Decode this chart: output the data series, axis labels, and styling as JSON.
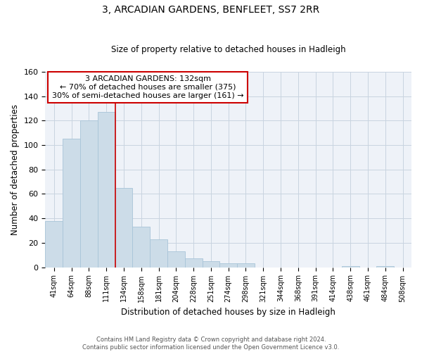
{
  "title": "3, ARCADIAN GARDENS, BENFLEET, SS7 2RR",
  "subtitle": "Size of property relative to detached houses in Hadleigh",
  "xlabel": "Distribution of detached houses by size in Hadleigh",
  "ylabel": "Number of detached properties",
  "bin_labels": [
    "41sqm",
    "64sqm",
    "88sqm",
    "111sqm",
    "134sqm",
    "158sqm",
    "181sqm",
    "204sqm",
    "228sqm",
    "251sqm",
    "274sqm",
    "298sqm",
    "321sqm",
    "344sqm",
    "368sqm",
    "391sqm",
    "414sqm",
    "438sqm",
    "461sqm",
    "484sqm",
    "508sqm"
  ],
  "bar_heights": [
    38,
    105,
    120,
    127,
    65,
    33,
    23,
    13,
    7,
    5,
    3,
    3,
    0,
    0,
    0,
    0,
    0,
    1,
    0,
    1,
    0
  ],
  "bar_color": "#ccdce8",
  "bar_edgecolor": "#a8c4d8",
  "vline_x": 3.5,
  "vline_color": "#cc0000",
  "ylim": [
    0,
    160
  ],
  "yticks": [
    0,
    20,
    40,
    60,
    80,
    100,
    120,
    140,
    160
  ],
  "annotation_text": "3 ARCADIAN GARDENS: 132sqm\n← 70% of detached houses are smaller (375)\n30% of semi-detached houses are larger (161) →",
  "annotation_box_color": "#ffffff",
  "annotation_box_edgecolor": "#cc0000",
  "footer_line1": "Contains HM Land Registry data © Crown copyright and database right 2024.",
  "footer_line2": "Contains public sector information licensed under the Open Government Licence v3.0.",
  "background_color": "#eef2f8",
  "grid_color": "#c8d4e0"
}
